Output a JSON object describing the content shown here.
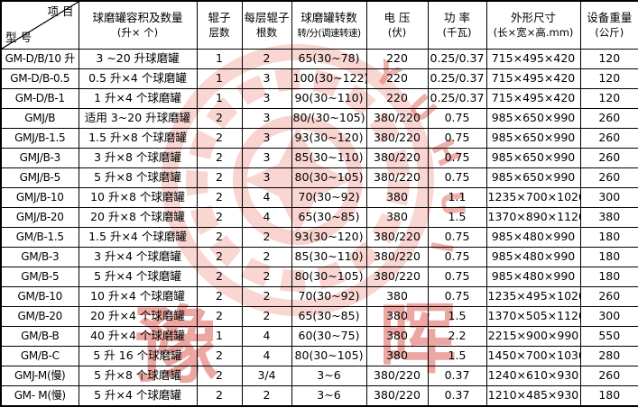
{
  "table": {
    "corner": {
      "top_right": "项 目",
      "bottom_left": "型 号"
    },
    "field_names": [
      "model",
      "capacity",
      "roller_layers",
      "rollers_per_layer",
      "rotation_speed",
      "voltage",
      "power",
      "dimensions",
      "weight"
    ],
    "columns": [
      {
        "line1": "球磨罐容积及数量",
        "line2": "(升× 个)"
      },
      {
        "line1": "辊子",
        "line2": "层数"
      },
      {
        "line1": "每层辊子",
        "line2": "根数"
      },
      {
        "line1": "球磨罐转数",
        "line2": "转/分(调速转速)"
      },
      {
        "line1": "电 压",
        "line2": "(伏)"
      },
      {
        "line1": "功 率",
        "line2": "(千瓦)"
      },
      {
        "line1": "外形尺寸",
        "line2": "(长×宽×高.mm)"
      },
      {
        "line1": "设备重量",
        "line2": "(公斤)"
      }
    ],
    "rows": [
      [
        "GM-D/B/10 升",
        "3 ~20 升球磨罐",
        "1",
        "2",
        "65(30~78)",
        "220",
        "0.25/0.37",
        "715×495×420",
        "120"
      ],
      [
        "GM-D/B-0.5",
        "0.5 升×4 个球磨罐",
        "1",
        "3",
        "100(30~122)",
        "220",
        "0.25/0.37",
        "715×495×420",
        "120"
      ],
      [
        "GM-D/B-1",
        "1 升×4 个球磨罐",
        "1",
        "3",
        "90(30~110)",
        "220",
        "0.25/0.37",
        "715×495×420",
        "120"
      ],
      [
        "GMJ/B",
        "适用 3~20 升球磨罐",
        "2",
        "3",
        "80/(30~105)",
        "380/220",
        "0.75",
        "985×650×990",
        "260"
      ],
      [
        "GMJ/B-1.5",
        "1.5 升×8 个球磨罐",
        "2",
        "3",
        "93(30~120)",
        "380/220",
        "0.75",
        "985×650×990",
        "260"
      ],
      [
        "GMJ/B-3",
        "3 升×8 个球磨罐",
        "2",
        "3",
        "85(30~110)",
        "380/220",
        "0.75",
        "985×650×990",
        "260"
      ],
      [
        "GMJ/B-5",
        "5 升×8 个球磨罐",
        "2",
        "3",
        "80(30~105)",
        "380/220",
        "0.75",
        "985×650×990",
        "260"
      ],
      [
        "GMJ/B-10",
        "10 升×8 个球磨罐",
        "2",
        "4",
        "70(30~92)",
        "380",
        "1.1",
        "1235×700×1020",
        "300"
      ],
      [
        "GMJ/B-20",
        "20 升×8 个球磨罐",
        "2",
        "4",
        "65(30~85)",
        "380",
        "1.5",
        "1370×890×1120",
        "380"
      ],
      [
        "GM/B-1.5",
        "1.5 升×4 个球磨罐",
        "2",
        "2",
        "93(30~120)",
        "380/220",
        "0.75",
        "985×480×990",
        "180"
      ],
      [
        "GM/B-3",
        "3 升×4 个球磨罐",
        "2",
        "2",
        "85(30~110)",
        "380/220",
        "0.75",
        "985×480×990",
        "180"
      ],
      [
        "GM/B-5",
        "5 升×4 个球磨罐",
        "2",
        "2",
        "80(30~105)",
        "380/220",
        "0.75",
        "985×480×990",
        "180"
      ],
      [
        "GM/B-10",
        "10 升×4 个球磨罐",
        "2",
        "2",
        "70(30~92)",
        "380",
        "0.75",
        "1235×495×1020",
        "260"
      ],
      [
        "GM/B-20",
        "20 升×4 个球磨罐",
        "2",
        "2",
        "65(30~85)",
        "380",
        "1.5",
        "1370×505×1120",
        "300"
      ],
      [
        "GM/B-B",
        "40 升×4 个球磨罐",
        "1",
        "4",
        "60(30~75)",
        "380",
        "2.2",
        "2215×900×990",
        "550"
      ],
      [
        "GM/B-C",
        "5 升 16 个球磨罐",
        "2",
        "4",
        "80(30~105)",
        "380",
        "1.5",
        "1450×700×1030",
        "280"
      ],
      [
        "GMJ-M(慢)",
        "5 升×8 个球磨罐",
        "2",
        "3/4",
        "3~6",
        "380/220",
        "0.37",
        "1240×610×930",
        "260"
      ],
      [
        "GM- M(慢)",
        "5 升×4 个球磨罐",
        "2",
        "2",
        "3~6",
        "380/220",
        "0.37",
        "1210×485×930",
        "180"
      ]
    ]
  },
  "watermark": {
    "char_left": "豫",
    "char_right": "晖",
    "arc_letters": [
      "Y",
      "U",
      "H",
      "U",
      "I"
    ],
    "ring_color": "#f2a095",
    "text_color": "#dd5348"
  }
}
